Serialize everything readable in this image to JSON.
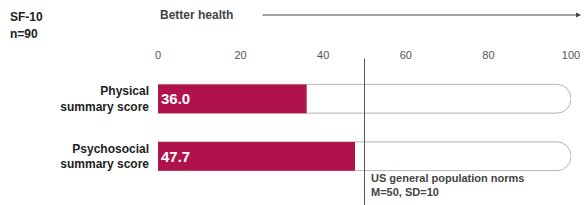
{
  "chart_data": {
    "type": "bar",
    "orientation": "horizontal",
    "title": "SF-10",
    "subtitle": "n=90",
    "xlabel": "Better health",
    "categories": [
      "Physical summary score",
      "Psychosocial summary score"
    ],
    "values": [
      36.0,
      47.7
    ],
    "value_labels": [
      "36.0",
      "47.7"
    ],
    "data_labels": true,
    "color": "#b0124c",
    "xlim": [
      0,
      100
    ],
    "xticks": [
      0,
      20,
      40,
      60,
      80,
      100
    ],
    "grid": false,
    "reference_line": {
      "value": 50,
      "label": [
        "US general population norms",
        "M=50, SD=10"
      ]
    }
  }
}
